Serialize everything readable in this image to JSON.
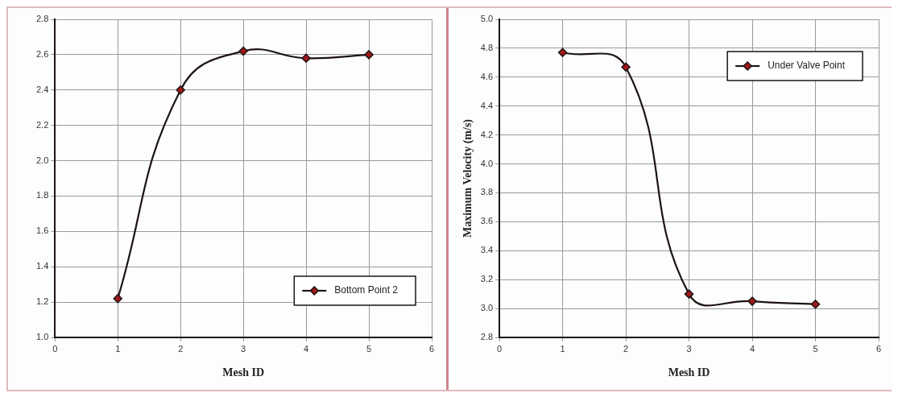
{
  "chart_data": [
    {
      "type": "line",
      "xlabel": "Mesh ID",
      "x": [
        1,
        2,
        3,
        4,
        5
      ],
      "series": [
        {
          "name": "Bottom Point 2",
          "color": "#1e1414",
          "values": [
            1.22,
            2.4,
            2.62,
            2.58,
            2.6
          ]
        }
      ],
      "xlim": [
        0,
        6
      ],
      "xticks": [
        0,
        1,
        2,
        3,
        4,
        5,
        6
      ],
      "ylim": [
        1.0,
        2.8
      ],
      "yticks": [
        {
          "value": 1.0,
          "label": "1.0"
        },
        {
          "value": 1.2,
          "label": "1.2"
        },
        {
          "value": 1.4,
          "label": "1.4"
        },
        {
          "value": 1.6,
          "label": "1.6"
        },
        {
          "value": 1.8,
          "label": "1.8"
        },
        {
          "value": 2.0,
          "label": "2.0"
        },
        {
          "value": 2.2,
          "label": "2.2"
        },
        {
          "value": 2.4,
          "label": "2.4"
        },
        {
          "value": 2.6,
          "label": "2.6"
        },
        {
          "value": 2.8,
          "label": "2.8"
        }
      ],
      "grid": true,
      "legend": "bottom right",
      "marker": "diamond"
    },
    {
      "type": "line",
      "xlabel": "Mesh ID",
      "ylabel": "Maximum Velocity (m/s)",
      "x": [
        1,
        2,
        3,
        4,
        5
      ],
      "series": [
        {
          "name": "Under Valve Point",
          "color": "#1e1414",
          "values": [
            4.77,
            4.67,
            3.1,
            3.05,
            3.03
          ]
        }
      ],
      "xlim": [
        0,
        6
      ],
      "xticks": [
        0,
        1,
        2,
        3,
        4,
        5,
        6
      ],
      "ylim": [
        2.8,
        5.0
      ],
      "yticks": [
        {
          "value": 2.8,
          "label": "2.8"
        },
        {
          "value": 3.0,
          "label": "3.0"
        },
        {
          "value": 3.2,
          "label": "3.2"
        },
        {
          "value": 3.4,
          "label": "3.4"
        },
        {
          "value": 3.6,
          "label": "3.6"
        },
        {
          "value": 3.8,
          "label": "3.8"
        },
        {
          "value": 4.0,
          "label": "4.0"
        },
        {
          "value": 4.2,
          "label": "4.2"
        },
        {
          "value": 4.4,
          "label": "4.4"
        },
        {
          "value": 4.6,
          "label": "4.6"
        },
        {
          "value": 4.8,
          "label": "4.8"
        },
        {
          "value": 5.0,
          "label": "5.0"
        }
      ],
      "grid": true,
      "legend": "top right",
      "marker": "diamond"
    }
  ]
}
